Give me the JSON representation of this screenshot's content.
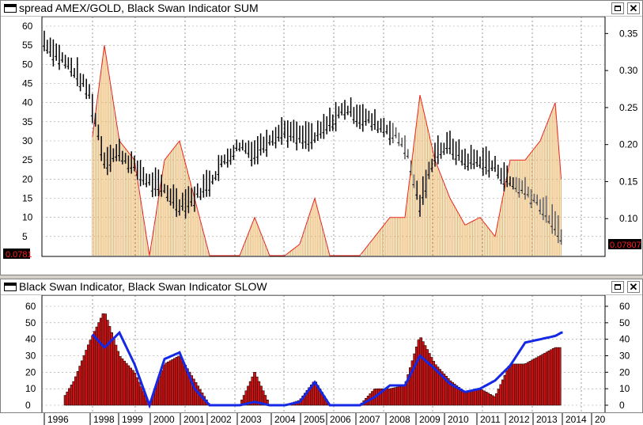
{
  "top_panel": {
    "title": "spread AMEX/GOLD, Black Swan Indicator SUM",
    "left_value_tag": "0.0781",
    "right_value_tag": "0.07807",
    "left_ticks": [
      "60",
      "55",
      "50",
      "45",
      "40",
      "35",
      "30",
      "25",
      "20",
      "15",
      "10",
      "5"
    ],
    "right_ticks": [
      "0.35",
      "0.30",
      "0.25",
      "0.20",
      "0.15",
      "0.10"
    ]
  },
  "bottom_panel": {
    "title": "Black Swan Indicator, Black Swan Indicator SLOW",
    "left_ticks": [
      "60",
      "50",
      "40",
      "30",
      "20",
      "10",
      "0"
    ],
    "right_ticks": [
      "60",
      "50",
      "40",
      "30",
      "20",
      "10",
      "0"
    ]
  },
  "window_buttons": {
    "maximize": "",
    "close": "✕"
  },
  "x_axis": {
    "labels": [
      "1996",
      "1998",
      "1999",
      "2000",
      "2001",
      "2002",
      "2003",
      "2004",
      "2005",
      "2006",
      "2007",
      "2008",
      "2009",
      "2010",
      "2011",
      "2012",
      "2013",
      "2014",
      "20"
    ]
  },
  "colors": {
    "price": "#000000",
    "sum_line": "#e8281c",
    "sum_fill": "#e8b060",
    "bsi_bar": "#c81414",
    "slow": "#1428e6",
    "tag_bg": "#000000",
    "tag_fg": "#ff2020"
  },
  "chart_data": [
    {
      "type": "line",
      "title": "spread AMEX/GOLD, Black Swan Indicator SUM",
      "x": [
        1996.0,
        1996.5,
        1997.0,
        1997.5,
        1998.0,
        1998.5,
        1999.0,
        1999.5,
        2000.0,
        2000.5,
        2001.0,
        2001.5,
        2002.0,
        2002.5,
        2003.0,
        2003.5,
        2004.0,
        2004.5,
        2005.0,
        2005.5,
        2006.0,
        2006.5,
        2007.0,
        2007.5,
        2008.0,
        2008.5,
        2009.0,
        2009.5,
        2010.0,
        2010.5,
        2011.0,
        2011.5,
        2012.0,
        2012.5,
        2013.0,
        2013.2
      ],
      "series": [
        {
          "name": "spread AMEX/GOLD",
          "axis": "right",
          "values": [
            0.34,
            0.32,
            0.3,
            0.27,
            0.18,
            0.19,
            0.17,
            0.15,
            0.14,
            0.12,
            0.13,
            0.15,
            0.18,
            0.2,
            0.19,
            0.21,
            0.22,
            0.21,
            0.21,
            0.23,
            0.25,
            0.24,
            0.23,
            0.22,
            0.2,
            0.12,
            0.19,
            0.2,
            0.18,
            0.18,
            0.17,
            0.15,
            0.14,
            0.12,
            0.09,
            0.08
          ]
        },
        {
          "name": "Black Swan Indicator SUM",
          "axis": "left",
          "values": [
            0,
            0,
            20,
            25,
            55,
            30,
            25,
            0,
            25,
            30,
            15,
            0,
            0,
            0,
            10,
            0,
            0,
            3,
            15,
            0,
            0,
            0,
            5,
            10,
            10,
            42,
            25,
            15,
            8,
            10,
            5,
            25,
            25,
            30,
            40,
            20
          ]
        }
      ]
    },
    {
      "type": "bar",
      "title": "Black Swan Indicator, Black Swan Indicator SLOW",
      "x": [
        1996.0,
        1996.5,
        1997.0,
        1997.5,
        1998.0,
        1998.5,
        1999.0,
        1999.5,
        2000.0,
        2000.5,
        2001.0,
        2001.5,
        2002.0,
        2002.5,
        2003.0,
        2003.5,
        2004.0,
        2004.5,
        2005.0,
        2005.5,
        2006.0,
        2006.5,
        2007.0,
        2007.5,
        2008.0,
        2008.5,
        2009.0,
        2009.5,
        2010.0,
        2010.5,
        2011.0,
        2011.5,
        2012.0,
        2012.5,
        2013.0,
        2013.2
      ],
      "ylim": [
        0,
        60
      ],
      "series": [
        {
          "name": "Black Swan Indicator",
          "values": [
            0,
            0,
            15,
            38,
            57,
            30,
            20,
            0,
            25,
            30,
            15,
            0,
            0,
            0,
            20,
            0,
            0,
            3,
            15,
            0,
            0,
            0,
            10,
            10,
            12,
            42,
            25,
            15,
            8,
            10,
            5,
            25,
            25,
            30,
            35,
            35
          ]
        },
        {
          "name": "Black Swan Indicator SLOW",
          "values": [
            0,
            0,
            0,
            45,
            35,
            44,
            25,
            0,
            28,
            32,
            10,
            0,
            0,
            0,
            2,
            0,
            0,
            2,
            14,
            0,
            0,
            0,
            5,
            12,
            12,
            30,
            22,
            13,
            8,
            10,
            15,
            24,
            38,
            40,
            42,
            44
          ]
        }
      ]
    }
  ]
}
